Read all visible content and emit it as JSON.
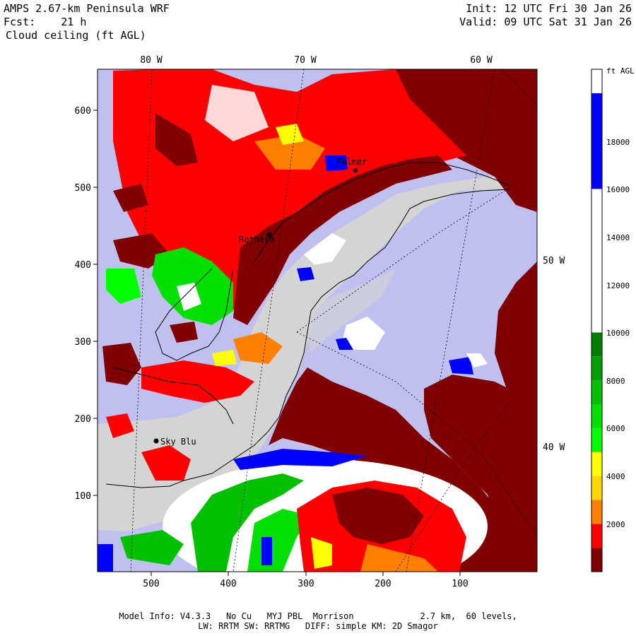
{
  "header": {
    "model_title": "AMPS 2.67-km Peninsula WRF",
    "forecast_hour": "Fcst:    21 h",
    "field_name": "Cloud ceiling (ft AGL)",
    "init_time": "Init: 12 UTC Fri 30 Jan 26",
    "valid_time": "Valid: 09 UTC Sat 31 Jan 26"
  },
  "map": {
    "longitude_labels_top": [
      "80 W",
      "70 W",
      "60 W"
    ],
    "longitude_labels_right": [
      "50 W",
      "40 W"
    ],
    "y_axis_ticks": [
      "600",
      "500",
      "400",
      "300",
      "200",
      "100"
    ],
    "x_axis_ticks": [
      "500",
      "400",
      "300",
      "200",
      "100"
    ],
    "stations": [
      {
        "name": "Rothera"
      },
      {
        "name": "Sky Blu"
      },
      {
        "name": "Palmer"
      }
    ]
  },
  "colorbar": {
    "unit_label": "ft AGL",
    "tick_labels": [
      "18000",
      "16000",
      "14000",
      "12000",
      "10000",
      "8000",
      "6000",
      "4000",
      "2000"
    ],
    "bands": [
      {
        "from": 0,
        "to": 1000,
        "color": "#800000"
      },
      {
        "from": 1000,
        "to": 2000,
        "color": "#ff0000"
      },
      {
        "from": 2000,
        "to": 3000,
        "color": "#ff7f00"
      },
      {
        "from": 3000,
        "to": 4000,
        "color": "#ffd700"
      },
      {
        "from": 4000,
        "to": 5000,
        "color": "#ffff00"
      },
      {
        "from": 5000,
        "to": 6000,
        "color": "#00ff00"
      },
      {
        "from": 6000,
        "to": 7000,
        "color": "#00e000"
      },
      {
        "from": 7000,
        "to": 8000,
        "color": "#00c000"
      },
      {
        "from": 8000,
        "to": 9000,
        "color": "#00a000"
      },
      {
        "from": 9000,
        "to": 10000,
        "color": "#008000"
      },
      {
        "from": 10000,
        "to": 16000,
        "color": "#ffffff"
      },
      {
        "from": 16000,
        "to": 20000,
        "color": "#0000ff"
      },
      {
        "from": 20000,
        "to": 21000,
        "color": "#ffffff"
      }
    ]
  },
  "colors": {
    "no_ceiling_ocean": "#c0c0f0",
    "ice_shelf": "#d4d4d4",
    "low_ceiling": "#800000",
    "coastline": "#000000"
  },
  "footer": {
    "model_info": "Model Info: V4.3.3   No Cu   MYJ PBL  Morrison             2.7 km,  60 levels,",
    "physics": "LW: RRTM SW: RRTMG   DIFF: simple KM: 2D Smagor"
  }
}
